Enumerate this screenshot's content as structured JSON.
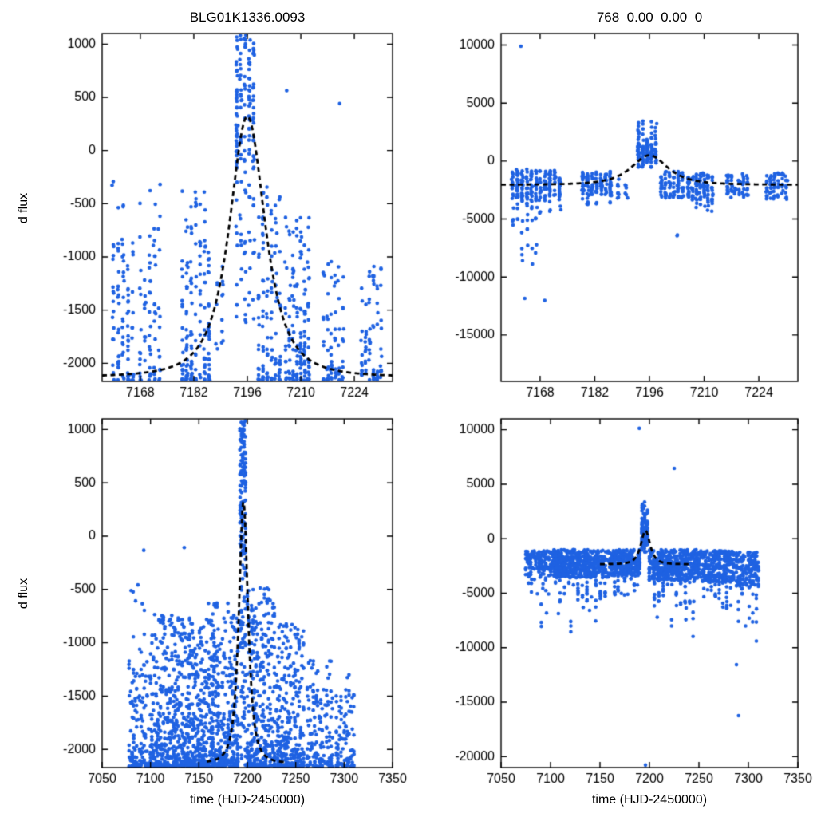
{
  "style": {
    "background": "#ffffff",
    "point_color": "#1f62e2",
    "curve_color": "#000000",
    "axis_color": "#000000"
  },
  "chart_data": [
    {
      "id": "top-left",
      "type": "scatter",
      "title": "BLG01K1336.0093",
      "xlabel": "",
      "ylabel": "d flux",
      "xlim": [
        7158,
        7234
      ],
      "ylim": [
        -2170,
        1100
      ],
      "xticks": [
        7168,
        7182,
        7196,
        7210,
        7224
      ],
      "yticks": [
        1000,
        500,
        0,
        -500,
        -1000,
        -1500,
        -2000
      ],
      "model": {
        "kind": "microlensing-fit",
        "t0": 7196,
        "width": 7.2,
        "baseline": -2130,
        "amplitude": 2450,
        "draw_range": [
          7158,
          7234
        ]
      },
      "clusters": [
        {
          "x": [
            7161,
            7166
          ],
          "cols": 5,
          "n": 95,
          "y": [
            -2160,
            -500
          ],
          "bias": "low"
        },
        {
          "x": [
            7160.5,
            7161
          ],
          "cols": 1,
          "n": 2,
          "y": [
            -350,
            -250
          ],
          "bias": "uniform"
        },
        {
          "x": [
            7168,
            7173
          ],
          "cols": 5,
          "n": 75,
          "y": [
            -2160,
            -300
          ],
          "bias": "low"
        },
        {
          "x": [
            7179,
            7186
          ],
          "cols": 7,
          "n": 160,
          "y": [
            -2160,
            -380
          ],
          "bias": "low"
        },
        {
          "x": [
            7188,
            7189.5
          ],
          "cols": 2,
          "n": 14,
          "y": [
            -1950,
            -1050
          ],
          "bias": "uniform"
        },
        {
          "x": [
            7193.2,
            7197.6
          ],
          "cols": 5,
          "n": 75,
          "y": [
            380,
            1090
          ],
          "bias": "uniform"
        },
        {
          "x": [
            7193.2,
            7197.6
          ],
          "cols": 5,
          "n": 55,
          "y": [
            -180,
            380
          ],
          "bias": "uniform"
        },
        {
          "x": [
            7193.2,
            7197.6
          ],
          "cols": 5,
          "n": 45,
          "y": [
            -1680,
            -180
          ],
          "bias": "uniform"
        },
        {
          "x": [
            7199,
            7204.5
          ],
          "cols": 6,
          "n": 115,
          "y": [
            -2160,
            -320
          ],
          "bias": "low"
        },
        {
          "x": [
            7206,
            7212
          ],
          "cols": 7,
          "n": 150,
          "y": [
            -2160,
            -520
          ],
          "bias": "low"
        },
        {
          "x": [
            7206.2,
            7206.6
          ],
          "cols": 1,
          "n": 1,
          "y": [
            550,
            575
          ],
          "bias": "uniform"
        },
        {
          "x": [
            7216,
            7221
          ],
          "cols": 6,
          "n": 75,
          "y": [
            -2160,
            -950
          ],
          "bias": "low"
        },
        {
          "x": [
            7219.8,
            7220.2
          ],
          "cols": 1,
          "n": 1,
          "y": [
            425,
            445
          ],
          "bias": "uniform"
        },
        {
          "x": [
            7226,
            7231
          ],
          "cols": 6,
          "n": 75,
          "y": [
            -2160,
            -1080
          ],
          "bias": "low"
        }
      ]
    },
    {
      "id": "top-right",
      "type": "scatter",
      "title": "768  0.00  0.00  0",
      "xlabel": "",
      "ylabel": "",
      "xlim": [
        7158,
        7234
      ],
      "ylim": [
        -19000,
        11000
      ],
      "xticks": [
        7168,
        7182,
        7196,
        7210,
        7224
      ],
      "yticks": [
        10000,
        5000,
        0,
        -5000,
        -10000,
        -15000
      ],
      "model": {
        "kind": "microlensing-fit",
        "t0": 7196,
        "width": 7.2,
        "baseline": -2050,
        "amplitude": 2550,
        "draw_range": [
          7158,
          7234
        ]
      },
      "clusters": [
        {
          "x": [
            7161,
            7167
          ],
          "cols": 6,
          "n": 100,
          "y": [
            -3300,
            -700
          ],
          "bias": "uniform"
        },
        {
          "x": [
            7161,
            7167
          ],
          "cols": 6,
          "n": 25,
          "y": [
            -5200,
            -3300
          ],
          "bias": "uniform"
        },
        {
          "x": [
            7161,
            7167
          ],
          "cols": 6,
          "n": 12,
          "y": [
            -9200,
            -5200
          ],
          "bias": "uniform"
        },
        {
          "x": [
            7164,
            7169
          ],
          "cols": 2,
          "n": 2,
          "y": [
            -13200,
            -11800
          ],
          "bias": "uniform"
        },
        {
          "x": [
            7162.5,
            7163.5
          ],
          "cols": 1,
          "n": 1,
          "y": [
            9900,
            10100
          ],
          "bias": "uniform"
        },
        {
          "x": [
            7168,
            7173
          ],
          "cols": 5,
          "n": 75,
          "y": [
            -3100,
            -800
          ],
          "bias": "uniform"
        },
        {
          "x": [
            7168,
            7173
          ],
          "cols": 5,
          "n": 12,
          "y": [
            -4800,
            -3100
          ],
          "bias": "uniform"
        },
        {
          "x": [
            7179,
            7186
          ],
          "cols": 7,
          "n": 120,
          "y": [
            -3000,
            -900
          ],
          "bias": "uniform"
        },
        {
          "x": [
            7179,
            7186
          ],
          "cols": 7,
          "n": 10,
          "y": [
            -3800,
            -3000
          ],
          "bias": "uniform"
        },
        {
          "x": [
            7188,
            7190
          ],
          "cols": 2,
          "n": 16,
          "y": [
            -3200,
            -1400
          ],
          "bias": "uniform"
        },
        {
          "x": [
            7193.2,
            7197.6
          ],
          "cols": 5,
          "n": 120,
          "y": [
            -500,
            2200
          ],
          "bias": "mid"
        },
        {
          "x": [
            7193.2,
            7197.6
          ],
          "cols": 5,
          "n": 16,
          "y": [
            2200,
            3500
          ],
          "bias": "uniform"
        },
        {
          "x": [
            7199,
            7204.5
          ],
          "cols": 6,
          "n": 85,
          "y": [
            -3300,
            -900
          ],
          "bias": "uniform"
        },
        {
          "x": [
            7202.5,
            7203.5
          ],
          "cols": 1,
          "n": 2,
          "y": [
            -6600,
            -5900
          ],
          "bias": "uniform"
        },
        {
          "x": [
            7206,
            7212
          ],
          "cols": 7,
          "n": 105,
          "y": [
            -3400,
            -1000
          ],
          "bias": "uniform"
        },
        {
          "x": [
            7206,
            7212
          ],
          "cols": 7,
          "n": 10,
          "y": [
            -4400,
            -3400
          ],
          "bias": "uniform"
        },
        {
          "x": [
            7216,
            7221
          ],
          "cols": 6,
          "n": 60,
          "y": [
            -3200,
            -1100
          ],
          "bias": "uniform"
        },
        {
          "x": [
            7226,
            7231
          ],
          "cols": 6,
          "n": 70,
          "y": [
            -3400,
            -1000
          ],
          "bias": "uniform"
        }
      ]
    },
    {
      "id": "bottom-left",
      "type": "scatter",
      "title": "",
      "xlabel": "time (HJD-2450000)",
      "ylabel": "d flux",
      "xlim": [
        7050,
        7350
      ],
      "ylim": [
        -2170,
        1100
      ],
      "xticks": [
        7050,
        7100,
        7150,
        7200,
        7250,
        7300,
        7350
      ],
      "yticks": [
        1000,
        500,
        0,
        -500,
        -1000,
        -1500,
        -2000
      ],
      "model": {
        "kind": "microlensing-fit",
        "t0": 7196,
        "width": 7.2,
        "baseline": -2130,
        "amplitude": 2450,
        "draw_range": [
          7158,
          7240
        ]
      },
      "clusters": [
        {
          "x": [
            7078,
            7098
          ],
          "cols": 14,
          "n": 140,
          "y": [
            -2160,
            -1050
          ],
          "bias": "low"
        },
        {
          "x": [
            7080,
            7096
          ],
          "cols": 8,
          "n": 8,
          "y": [
            -1050,
            -450
          ],
          "bias": "uniform"
        },
        {
          "x": [
            7092,
            7094
          ],
          "cols": 1,
          "n": 1,
          "y": [
            -150,
            -100
          ],
          "bias": "uniform"
        },
        {
          "x": [
            7100,
            7122
          ],
          "cols": 16,
          "n": 240,
          "y": [
            -2160,
            -720
          ],
          "bias": "low"
        },
        {
          "x": [
            7124,
            7158
          ],
          "cols": 24,
          "n": 430,
          "y": [
            -2160,
            -760
          ],
          "bias": "low"
        },
        {
          "x": [
            7134,
            7136
          ],
          "cols": 1,
          "n": 1,
          "y": [
            -130,
            -90
          ],
          "bias": "uniform"
        },
        {
          "x": [
            7160,
            7180
          ],
          "cols": 15,
          "n": 270,
          "y": [
            -2160,
            -620
          ],
          "bias": "low"
        },
        {
          "x": [
            7182,
            7190
          ],
          "cols": 7,
          "n": 130,
          "y": [
            -2160,
            -700
          ],
          "bias": "low"
        },
        {
          "x": [
            7192.5,
            7198
          ],
          "cols": 5,
          "n": 80,
          "y": [
            380,
            1090
          ],
          "bias": "uniform"
        },
        {
          "x": [
            7192.5,
            7198
          ],
          "cols": 5,
          "n": 55,
          "y": [
            -200,
            380
          ],
          "bias": "uniform"
        },
        {
          "x": [
            7192.5,
            7198
          ],
          "cols": 5,
          "n": 70,
          "y": [
            -2160,
            -200
          ],
          "bias": "uniform"
        },
        {
          "x": [
            7200,
            7228
          ],
          "cols": 20,
          "n": 340,
          "y": [
            -2160,
            -480
          ],
          "bias": "low"
        },
        {
          "x": [
            7230,
            7258
          ],
          "cols": 20,
          "n": 290,
          "y": [
            -2160,
            -820
          ],
          "bias": "low"
        },
        {
          "x": [
            7262,
            7288
          ],
          "cols": 18,
          "n": 140,
          "y": [
            -2160,
            -1150
          ],
          "bias": "low"
        },
        {
          "x": [
            7292,
            7310
          ],
          "cols": 12,
          "n": 95,
          "y": [
            -2160,
            -1280
          ],
          "bias": "low"
        }
      ]
    },
    {
      "id": "bottom-right",
      "type": "scatter",
      "title": "",
      "xlabel": "time (HJD-2450000)",
      "ylabel": "",
      "xlim": [
        7050,
        7350
      ],
      "ylim": [
        -21000,
        11000
      ],
      "xticks": [
        7050,
        7100,
        7150,
        7200,
        7250,
        7300,
        7350
      ],
      "yticks": [
        10000,
        5000,
        0,
        -5000,
        -10000,
        -15000,
        -20000
      ],
      "model": {
        "kind": "microlensing-fit",
        "t0": 7196,
        "width": 7.2,
        "baseline": -2350,
        "amplitude": 3100,
        "draw_range": [
          7150,
          7242
        ]
      },
      "clusters": [
        {
          "x": [
            7075,
            7100
          ],
          "cols": 16,
          "n": 140,
          "y": [
            -3400,
            -1100
          ],
          "bias": "uniform"
        },
        {
          "x": [
            7078,
            7098
          ],
          "cols": 8,
          "n": 15,
          "y": [
            -5200,
            -3400
          ],
          "bias": "uniform"
        },
        {
          "x": [
            7080,
            7096
          ],
          "cols": 4,
          "n": 4,
          "y": [
            -8200,
            -5400
          ],
          "bias": "uniform"
        },
        {
          "x": [
            7102,
            7160
          ],
          "cols": 40,
          "n": 480,
          "y": [
            -3600,
            -1000
          ],
          "bias": "uniform"
        },
        {
          "x": [
            7105,
            7155
          ],
          "cols": 12,
          "n": 45,
          "y": [
            -5800,
            -3600
          ],
          "bias": "uniform"
        },
        {
          "x": [
            7108,
            7152
          ],
          "cols": 8,
          "n": 8,
          "y": [
            -8600,
            -5800
          ],
          "bias": "uniform"
        },
        {
          "x": [
            7162,
            7190
          ],
          "cols": 20,
          "n": 280,
          "y": [
            -3400,
            -1000
          ],
          "bias": "uniform"
        },
        {
          "x": [
            7165,
            7188
          ],
          "cols": 8,
          "n": 25,
          "y": [
            -5200,
            -3400
          ],
          "bias": "uniform"
        },
        {
          "x": [
            7192.5,
            7198
          ],
          "cols": 5,
          "n": 95,
          "y": [
            -1200,
            2300
          ],
          "bias": "mid"
        },
        {
          "x": [
            7192.5,
            7198
          ],
          "cols": 5,
          "n": 9,
          "y": [
            2300,
            3500
          ],
          "bias": "uniform"
        },
        {
          "x": [
            7189,
            7191
          ],
          "cols": 1,
          "n": 1,
          "y": [
            10100,
            10300
          ],
          "bias": "uniform"
        },
        {
          "x": [
            7195,
            7197
          ],
          "cols": 1,
          "n": 1,
          "y": [
            -20800,
            -20400
          ],
          "bias": "uniform"
        },
        {
          "x": [
            7200,
            7250
          ],
          "cols": 35,
          "n": 430,
          "y": [
            -3800,
            -1000
          ],
          "bias": "uniform"
        },
        {
          "x": [
            7205,
            7245
          ],
          "cols": 10,
          "n": 40,
          "y": [
            -6200,
            -3800
          ],
          "bias": "uniform"
        },
        {
          "x": [
            7208,
            7244
          ],
          "cols": 6,
          "n": 8,
          "y": [
            -9200,
            -6200
          ],
          "bias": "uniform"
        },
        {
          "x": [
            7224,
            7226
          ],
          "cols": 1,
          "n": 1,
          "y": [
            6400,
            6600
          ],
          "bias": "uniform"
        },
        {
          "x": [
            7252,
            7285
          ],
          "cols": 22,
          "n": 260,
          "y": [
            -4000,
            -1100
          ],
          "bias": "uniform"
        },
        {
          "x": [
            7255,
            7282
          ],
          "cols": 8,
          "n": 25,
          "y": [
            -7000,
            -4000
          ],
          "bias": "uniform"
        },
        {
          "x": [
            7288,
            7310
          ],
          "cols": 14,
          "n": 150,
          "y": [
            -4400,
            -1200
          ],
          "bias": "uniform"
        },
        {
          "x": [
            7290,
            7308
          ],
          "cols": 6,
          "n": 18,
          "y": [
            -8000,
            -4400
          ],
          "bias": "uniform"
        },
        {
          "x": [
            7289,
            7291
          ],
          "cols": 1,
          "n": 1,
          "y": [
            -16600,
            -16200
          ],
          "bias": "uniform"
        },
        {
          "x": [
            7287,
            7289
          ],
          "cols": 1,
          "n": 1,
          "y": [
            -11700,
            -11300
          ],
          "bias": "uniform"
        },
        {
          "x": [
            7307,
            7309
          ],
          "cols": 1,
          "n": 1,
          "y": [
            -9700,
            -9300
          ],
          "bias": "uniform"
        }
      ]
    }
  ]
}
